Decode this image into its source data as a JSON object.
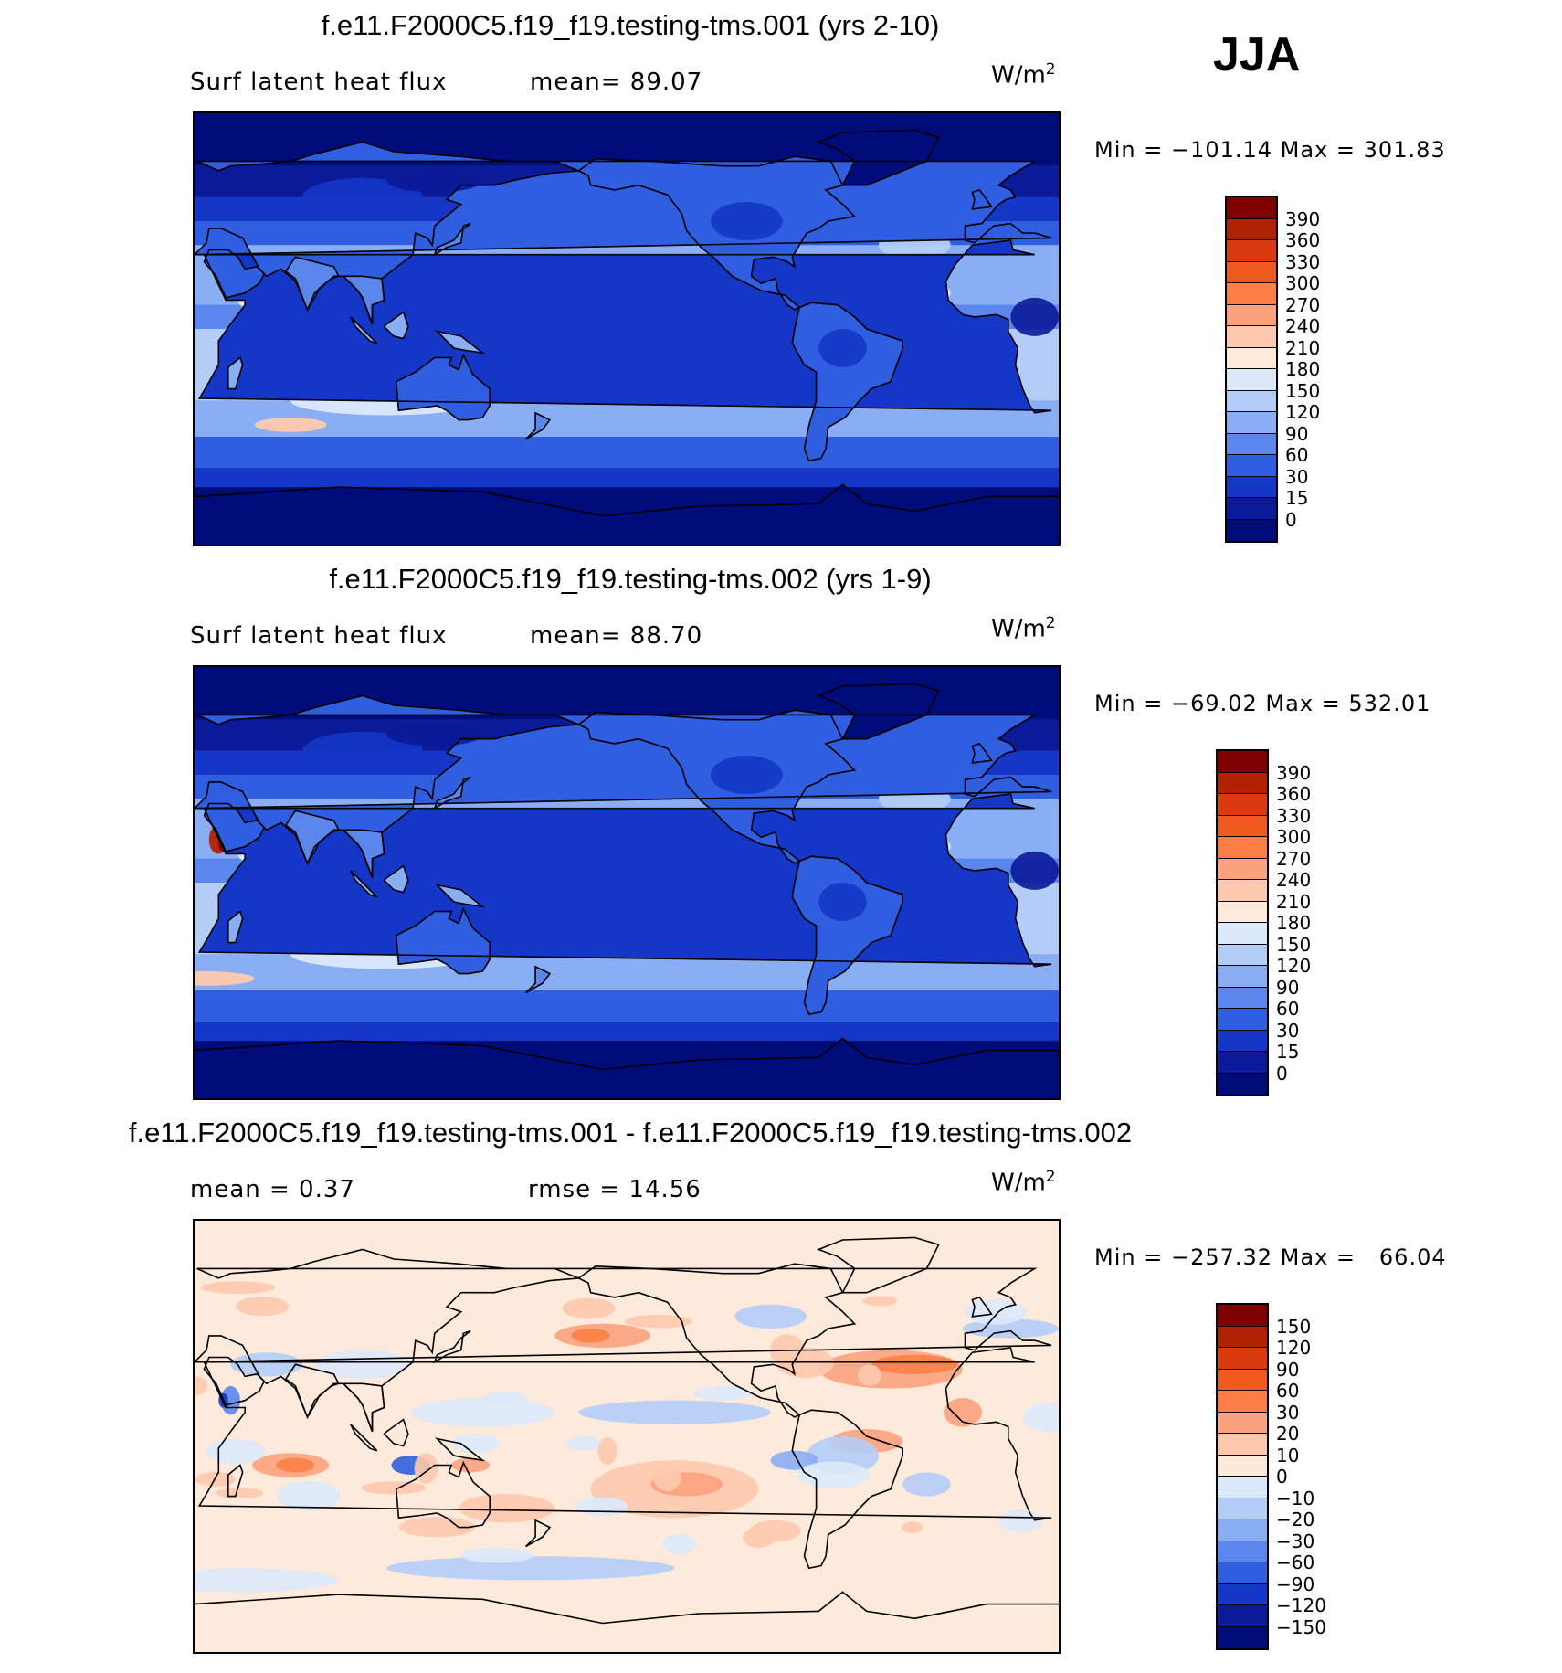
{
  "season": "JJA",
  "units_text": "W/m",
  "units_exp": "2",
  "panels": [
    {
      "title": "f.e11.F2000C5.f19_f19.testing-tms.001 (yrs 2-10)",
      "left_label": "Surf latent heat flux",
      "right_label": "mean=   89.07",
      "minmax": "Min = −101.14 Max = 301.83",
      "levels": [
        "390",
        "360",
        "330",
        "300",
        "270",
        "240",
        "210",
        "180",
        "150",
        "120",
        "90",
        "60",
        "30",
        "15",
        "0"
      ],
      "colors": [
        "#7f0000",
        "#b22100",
        "#d83b10",
        "#ef5a1f",
        "#fb7f45",
        "#fca27e",
        "#fdc9ae",
        "#fdeadb",
        "#dbe9fb",
        "#b3cdf7",
        "#8aaef3",
        "#5b87ed",
        "#2f5fe0",
        "#1437c7",
        "#0a1a98",
        "#000c7a"
      ],
      "mode": "flux",
      "variant": 0
    },
    {
      "title": "f.e11.F2000C5.f19_f19.testing-tms.002 (yrs 1-9)",
      "left_label": "Surf latent heat flux",
      "right_label": "mean=   88.70",
      "minmax": "Min = −69.02 Max = 532.01",
      "levels": [
        "390",
        "360",
        "330",
        "300",
        "270",
        "240",
        "210",
        "180",
        "150",
        "120",
        "90",
        "60",
        "30",
        "15",
        "0"
      ],
      "colors": [
        "#7f0000",
        "#b22100",
        "#d83b10",
        "#ef5a1f",
        "#fb7f45",
        "#fca27e",
        "#fdc9ae",
        "#fdeadb",
        "#dbe9fb",
        "#b3cdf7",
        "#8aaef3",
        "#5b87ed",
        "#2f5fe0",
        "#1437c7",
        "#0a1a98",
        "#000c7a"
      ],
      "mode": "flux",
      "variant": 1
    },
    {
      "title": "f.e11.F2000C5.f19_f19.testing-tms.001 - f.e11.F2000C5.f19_f19.testing-tms.002",
      "left_label": "mean =    0.37",
      "right_label": "rmse =   14.56",
      "minmax": "Min = −257.32 Max =   66.04",
      "levels": [
        "150",
        "120",
        "90",
        "60",
        "30",
        "20",
        "10",
        "0",
        "−10",
        "−20",
        "−30",
        "−60",
        "−90",
        "−120",
        "−150"
      ],
      "colors": [
        "#7f0000",
        "#b22100",
        "#d83b10",
        "#ef5a1f",
        "#fb7f45",
        "#fca27e",
        "#fdc9ae",
        "#fdeadb",
        "#dbe9fb",
        "#b3cdf7",
        "#8aaef3",
        "#5b87ed",
        "#2f5fe0",
        "#1437c7",
        "#0a1a98",
        "#000c7a"
      ],
      "mode": "diff",
      "variant": 2
    }
  ]
}
